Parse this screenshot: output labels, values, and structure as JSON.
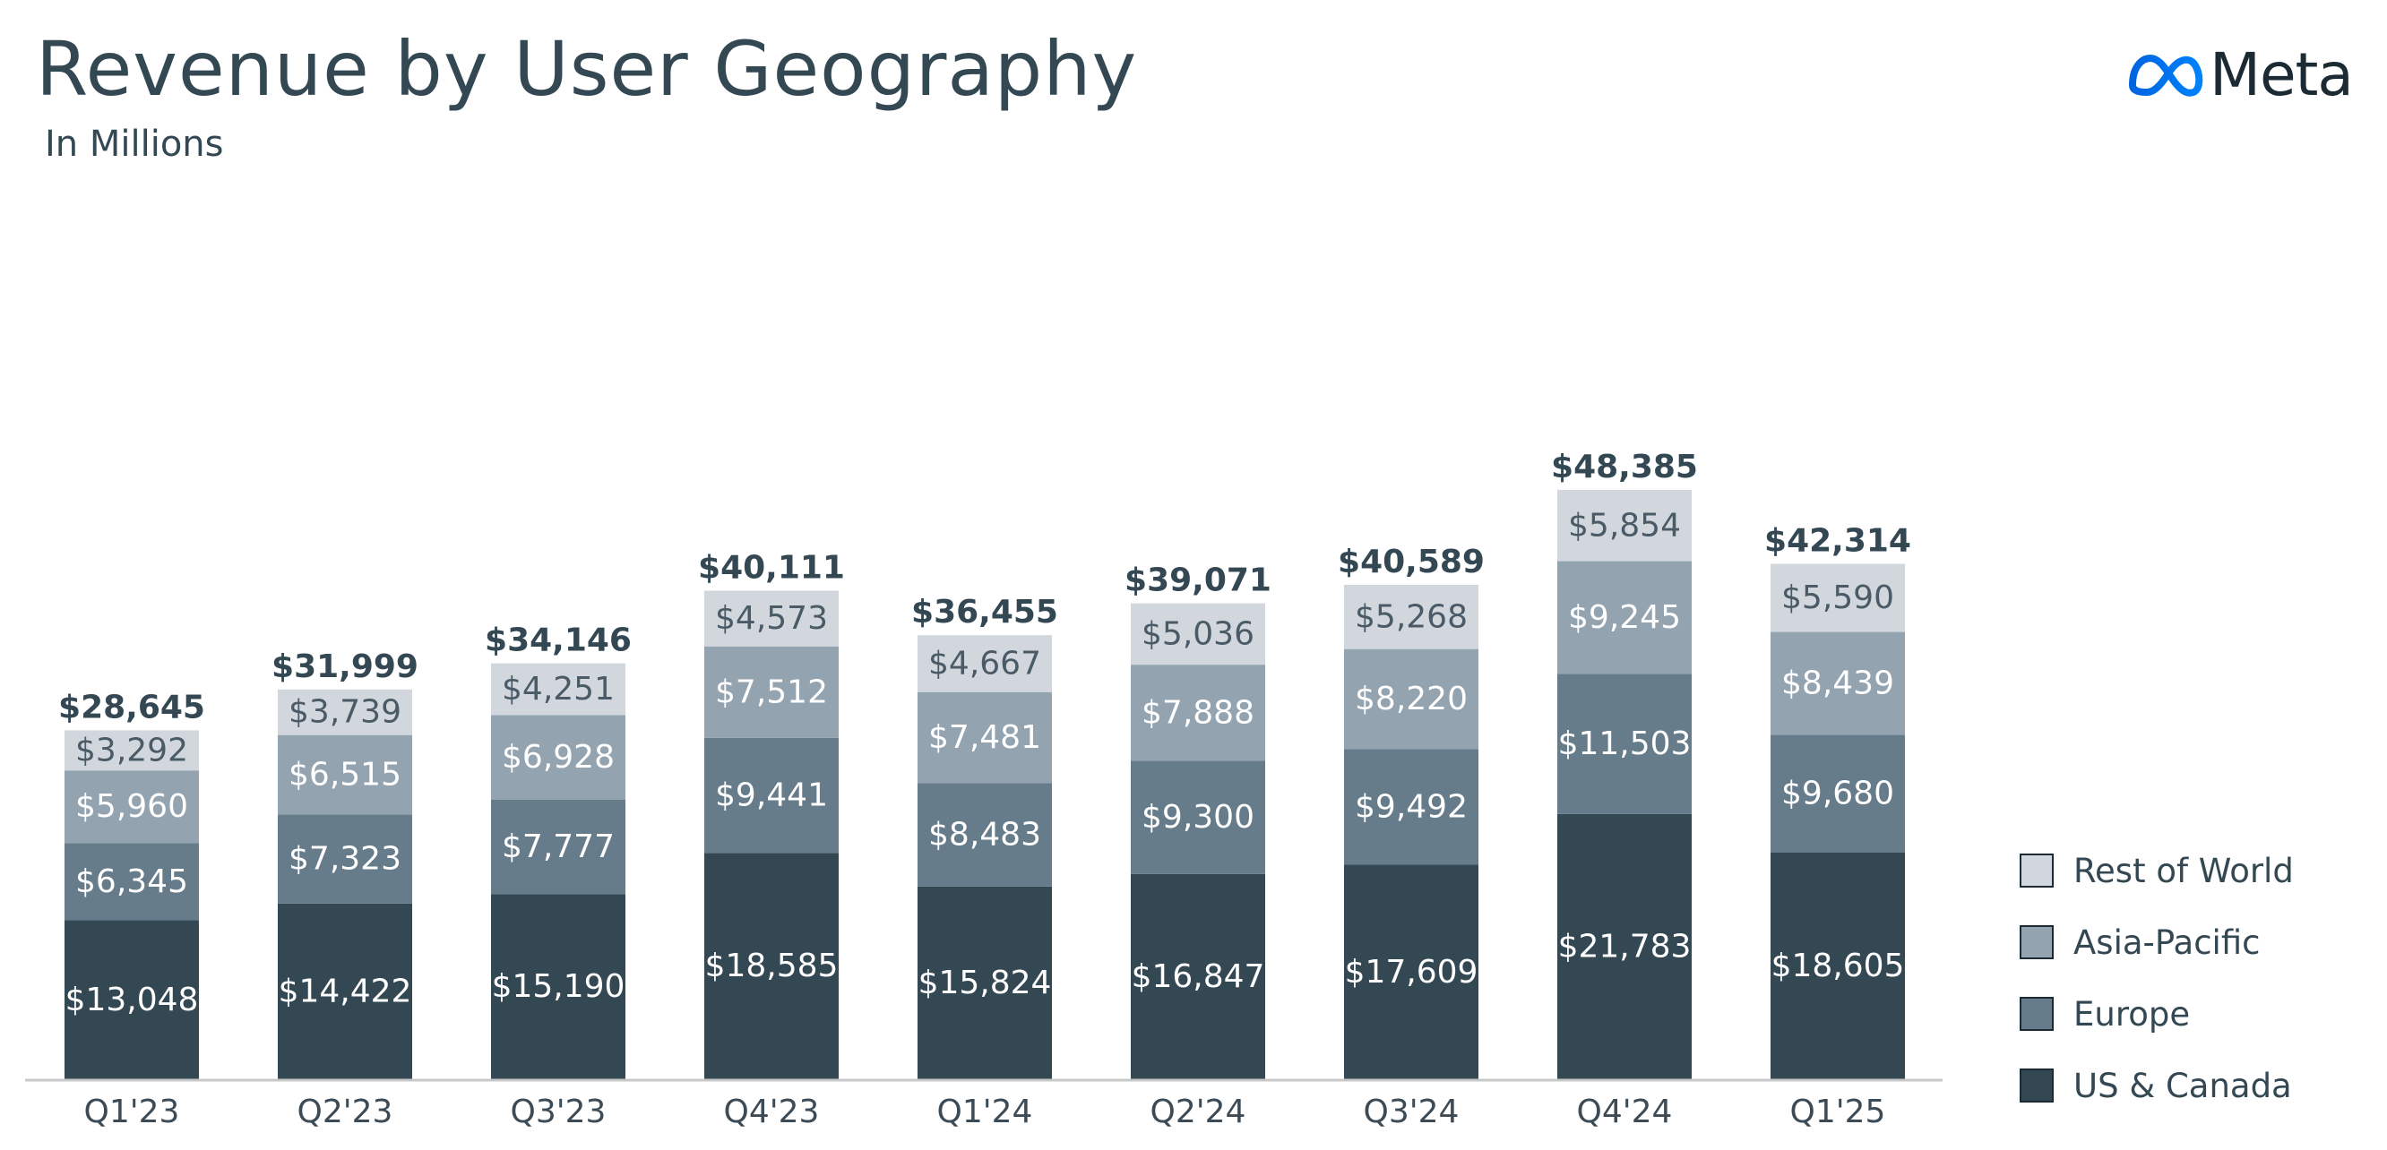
{
  "header": {
    "title": "Revenue by User Geography",
    "subtitle": "In Millions",
    "logo_text": "Meta"
  },
  "colors": {
    "us_canada": "#344854",
    "europe": "#677c8a",
    "asia_pacific": "#94a3b0",
    "rest_of_world": "#d1d7dc",
    "total_label": "#344854",
    "axis": "#c8c8c8",
    "logo_blue": "#0668e1"
  },
  "chart_data": {
    "type": "bar",
    "stacked": true,
    "title": "Revenue by User Geography",
    "subtitle": "In Millions",
    "categories": [
      "Q1'23",
      "Q2'23",
      "Q3'23",
      "Q4'23",
      "Q1'24",
      "Q2'24",
      "Q3'24",
      "Q4'24",
      "Q1'25"
    ],
    "series": [
      {
        "name": "US & Canada",
        "color_key": "us_canada",
        "values": [
          13048,
          14422,
          15190,
          18585,
          15824,
          16847,
          17609,
          21783,
          18605
        ],
        "labels": [
          "$13,048",
          "$14,422",
          "$15,190",
          "$18,585",
          "$15,824",
          "$16,847",
          "$17,609",
          "$21,783",
          "$18,605"
        ]
      },
      {
        "name": "Europe",
        "color_key": "europe",
        "values": [
          6345,
          7323,
          7777,
          9441,
          8483,
          9300,
          9492,
          11503,
          9680
        ],
        "labels": [
          "$6,345",
          "$7,323",
          "$7,777",
          "$9,441",
          "$8,483",
          "$9,300",
          "$9,492",
          "$11,503",
          "$9,680"
        ]
      },
      {
        "name": "Asia-Pacific",
        "color_key": "asia_pacific",
        "values": [
          5960,
          6515,
          6928,
          7512,
          7481,
          7888,
          8220,
          9245,
          8439
        ],
        "labels": [
          "$5,960",
          "$6,515",
          "$6,928",
          "$7,512",
          "$7,481",
          "$7,888",
          "$8,220",
          "$9,245",
          "$8,439"
        ]
      },
      {
        "name": "Rest of World",
        "color_key": "rest_of_world",
        "values": [
          3292,
          3739,
          4251,
          4573,
          4667,
          5036,
          5268,
          5854,
          5590
        ],
        "labels": [
          "$3,292",
          "$3,739",
          "$4,251",
          "$4,573",
          "$4,667",
          "$5,036",
          "$5,268",
          "$5,854",
          "$5,590"
        ]
      }
    ],
    "totals": [
      28645,
      31999,
      34146,
      40111,
      36455,
      39071,
      40589,
      48385,
      42314
    ],
    "total_labels": [
      "$28,645",
      "$31,999",
      "$34,146",
      "$40,111",
      "$36,455",
      "$39,071",
      "$40,589",
      "$48,385",
      "$42,314"
    ],
    "ylim": [
      0,
      52000
    ],
    "xlabel": "",
    "ylabel": "",
    "grid": false,
    "legend_position": "bottom-right"
  },
  "legend": [
    {
      "label": "Rest of World",
      "color_key": "rest_of_world"
    },
    {
      "label": "Asia-Pacific",
      "color_key": "asia_pacific"
    },
    {
      "label": "Europe",
      "color_key": "europe"
    },
    {
      "label": "US & Canada",
      "color_key": "us_canada"
    }
  ]
}
